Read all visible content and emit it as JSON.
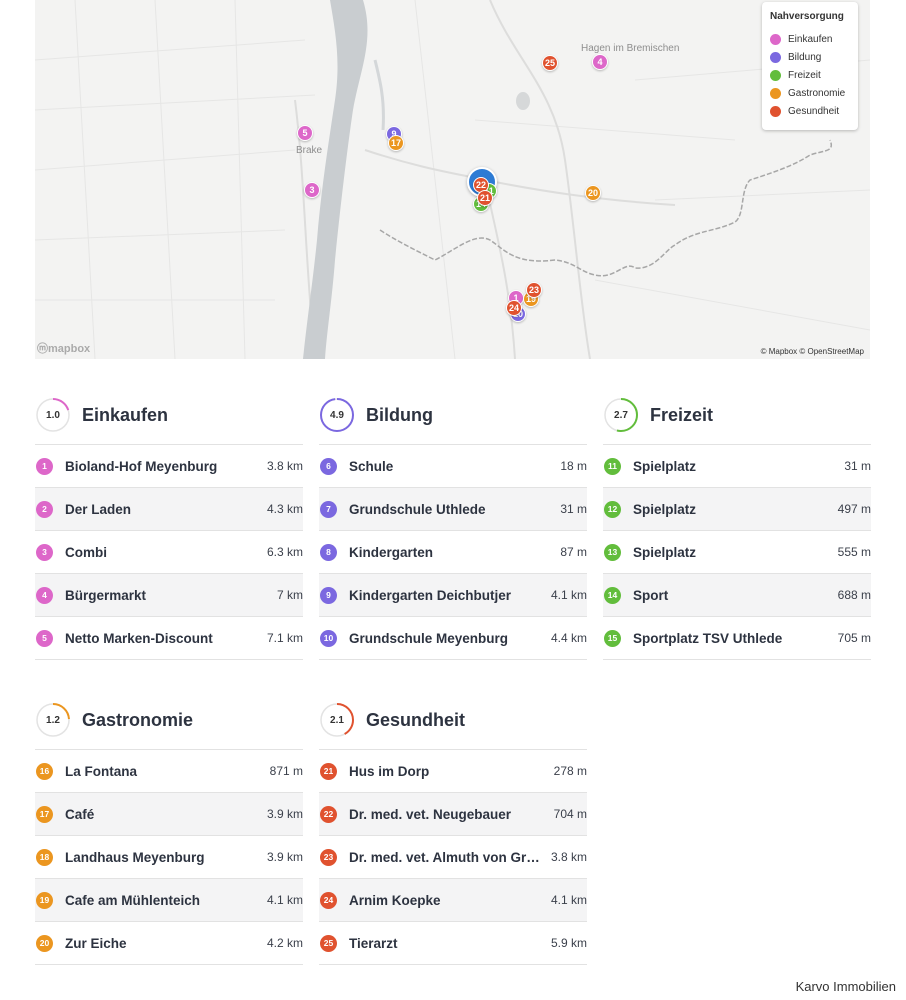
{
  "colors": {
    "einkaufen": "#dd67c9",
    "bildung": "#7b68e0",
    "freizeit": "#62bd3c",
    "gastronomie": "#eb9620",
    "gesundheit": "#e0522f",
    "river": "#c9cdd0",
    "border": "#a7a7a7"
  },
  "map": {
    "legend": {
      "title": "Nahversorgung",
      "items": [
        {
          "label": "Einkaufen",
          "icon": "shopping-icon",
          "color": "#dd67c9"
        },
        {
          "label": "Bildung",
          "icon": "education-icon",
          "color": "#7b68e0"
        },
        {
          "label": "Freizeit",
          "icon": "leisure-icon",
          "color": "#62bd3c"
        },
        {
          "label": "Gastronomie",
          "icon": "food-icon",
          "color": "#eb9620"
        },
        {
          "label": "Gesundheit",
          "icon": "health-icon",
          "color": "#e0522f"
        }
      ]
    },
    "place_labels": [
      "Hagen im Bremischen",
      "Brake"
    ],
    "attribution": "© Mapbox © OpenStreetMap",
    "logo": "mapbox"
  },
  "categories": [
    {
      "title": "Einkaufen",
      "score": "1.0",
      "score_value": 1.0,
      "color": "#dd67c9",
      "items": [
        {
          "n": "1",
          "name": "Bioland-Hof Meyenburg",
          "dist": "3.8 km"
        },
        {
          "n": "2",
          "name": "Der Laden",
          "dist": "4.3 km"
        },
        {
          "n": "3",
          "name": "Combi",
          "dist": "6.3 km"
        },
        {
          "n": "4",
          "name": "Bürgermarkt",
          "dist": "7 km"
        },
        {
          "n": "5",
          "name": "Netto Marken-Discount",
          "dist": "7.1 km"
        }
      ]
    },
    {
      "title": "Bildung",
      "score": "4.9",
      "score_value": 4.9,
      "color": "#7b68e0",
      "items": [
        {
          "n": "6",
          "name": "Schule",
          "dist": "18 m"
        },
        {
          "n": "7",
          "name": "Grundschule Uthlede",
          "dist": "31 m"
        },
        {
          "n": "8",
          "name": "Kindergarten",
          "dist": "87 m"
        },
        {
          "n": "9",
          "name": "Kindergarten Deichbutjer",
          "dist": "4.1 km"
        },
        {
          "n": "10",
          "name": "Grundschule Meyenburg",
          "dist": "4.4 km"
        }
      ]
    },
    {
      "title": "Freizeit",
      "score": "2.7",
      "score_value": 2.7,
      "color": "#62bd3c",
      "items": [
        {
          "n": "11",
          "name": "Spielplatz",
          "dist": "31 m"
        },
        {
          "n": "12",
          "name": "Spielplatz",
          "dist": "497 m"
        },
        {
          "n": "13",
          "name": "Spielplatz",
          "dist": "555 m"
        },
        {
          "n": "14",
          "name": "Sport",
          "dist": "688 m"
        },
        {
          "n": "15",
          "name": "Sportplatz TSV Uthlede",
          "dist": "705 m"
        }
      ]
    },
    {
      "title": "Gastronomie",
      "score": "1.2",
      "score_value": 1.2,
      "color": "#eb9620",
      "items": [
        {
          "n": "16",
          "name": "La Fontana",
          "dist": "871 m"
        },
        {
          "n": "17",
          "name": "Café",
          "dist": "3.9 km"
        },
        {
          "n": "18",
          "name": "Landhaus Meyenburg",
          "dist": "3.9 km"
        },
        {
          "n": "19",
          "name": "Cafe am Mühlenteich",
          "dist": "4.1 km"
        },
        {
          "n": "20",
          "name": "Zur Eiche",
          "dist": "4.2 km"
        }
      ]
    },
    {
      "title": "Gesundheit",
      "score": "2.1",
      "score_value": 2.1,
      "color": "#e0522f",
      "items": [
        {
          "n": "21",
          "name": "Hus im Dorp",
          "dist": "278 m"
        },
        {
          "n": "22",
          "name": "Dr. med. vet. Neugebauer",
          "dist": "704 m"
        },
        {
          "n": "23",
          "name": "Dr. med. vet. Almuth von Gr…",
          "dist": "3.8 km"
        },
        {
          "n": "24",
          "name": "Arnim Koepke",
          "dist": "4.1 km"
        },
        {
          "n": "25",
          "name": "Tierarzt",
          "dist": "5.9 km"
        }
      ]
    }
  ],
  "footer": "Karvo Immobilien"
}
